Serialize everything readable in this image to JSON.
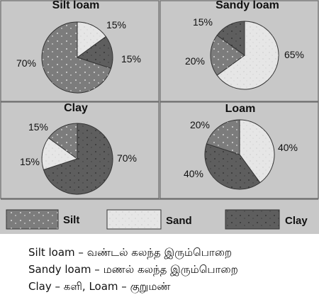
{
  "chart_data": [
    {
      "type": "pie",
      "title": "Silt loam",
      "slices": [
        {
          "label": "Sand",
          "value": 15,
          "text": "15%"
        },
        {
          "label": "Clay",
          "value": 15,
          "text": "15%"
        },
        {
          "label": "Silt",
          "value": 70,
          "text": "70%"
        }
      ]
    },
    {
      "type": "pie",
      "title": "Sandy loam",
      "slices": [
        {
          "label": "Sand",
          "value": 65,
          "text": "65%"
        },
        {
          "label": "Silt",
          "value": 20,
          "text": "20%"
        },
        {
          "label": "Clay",
          "value": 15,
          "text": "15%"
        }
      ]
    },
    {
      "type": "pie",
      "title": "Clay",
      "slices": [
        {
          "label": "Clay",
          "value": 70,
          "text": "70%"
        },
        {
          "label": "Sand",
          "value": 15,
          "text": "15%"
        },
        {
          "label": "Silt",
          "value": 15,
          "text": "15%"
        }
      ]
    },
    {
      "type": "pie",
      "title": "Loam",
      "slices": [
        {
          "label": "Sand",
          "value": 40,
          "text": "40%"
        },
        {
          "label": "Clay",
          "value": 40,
          "text": "40%"
        },
        {
          "label": "Silt",
          "value": 20,
          "text": "20%"
        }
      ]
    }
  ],
  "legend": [
    {
      "key": "Silt",
      "label": "Silt"
    },
    {
      "key": "Sand",
      "label": "Sand"
    },
    {
      "key": "Clay",
      "label": "Clay"
    }
  ],
  "colors": {
    "Silt": "#7c7c7c",
    "Sand": "#e6e6e6",
    "Clay": "#5e5e5e",
    "panel": "#c8c8c8",
    "border": "#6a6a6a"
  },
  "caption": {
    "line1": "Silt loam – வண்டல் கலந்த இரும்பொறை",
    "line2": "Sandy loam – மணல் கலந்த இரும்பொறை",
    "line3": "Clay – களி, Loam – குறுமண்"
  }
}
